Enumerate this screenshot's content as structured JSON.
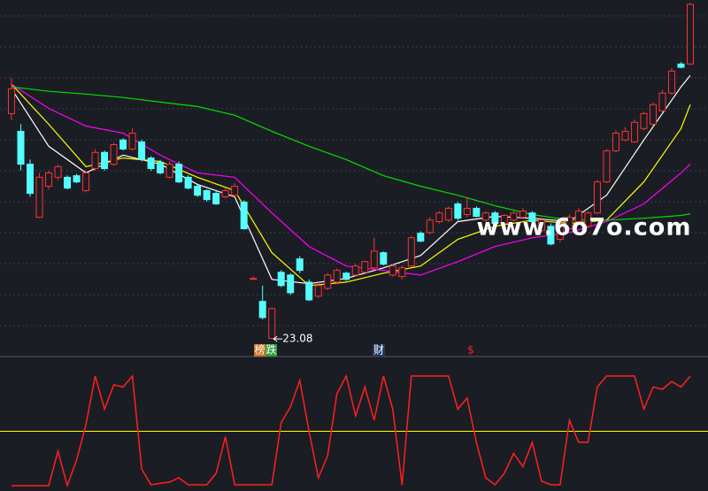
{
  "chart_data": [
    {
      "type": "candlestick",
      "up_color": "#ff3232",
      "down_color": "#54ffff",
      "xlim": [
        0,
        73
      ],
      "ylim": [
        22.6,
        34.0
      ],
      "candles": [
        [
          30.34,
          31.49,
          30.14,
          31.14
        ],
        [
          29.77,
          30.0,
          28.51,
          28.71
        ],
        [
          28.71,
          28.86,
          27.66,
          27.77
        ],
        [
          27.0,
          28.43,
          26.97,
          28.29
        ],
        [
          28.0,
          28.5,
          27.9,
          28.43
        ],
        [
          28.29,
          28.7,
          28.2,
          28.63
        ],
        [
          28.29,
          28.35,
          27.9,
          27.94
        ],
        [
          28.34,
          28.4,
          28.1,
          28.14
        ],
        [
          27.86,
          28.5,
          27.8,
          28.43
        ],
        [
          28.57,
          29.2,
          28.5,
          29.09
        ],
        [
          29.09,
          29.15,
          28.5,
          28.57
        ],
        [
          28.71,
          29.4,
          28.65,
          29.34
        ],
        [
          29.49,
          29.55,
          29.15,
          29.2
        ],
        [
          29.2,
          29.86,
          29.14,
          29.71
        ],
        [
          29.43,
          29.5,
          28.8,
          28.86
        ],
        [
          28.91,
          28.97,
          28.5,
          28.57
        ],
        [
          28.77,
          28.85,
          28.38,
          28.43
        ],
        [
          28.29,
          28.8,
          28.25,
          28.71
        ],
        [
          28.71,
          28.8,
          28.1,
          28.14
        ],
        [
          28.29,
          28.35,
          27.9,
          27.94
        ],
        [
          28.0,
          28.05,
          27.65,
          27.71
        ],
        [
          27.86,
          27.9,
          27.5,
          27.57
        ],
        [
          27.77,
          27.85,
          27.4,
          27.43
        ],
        [
          27.66,
          27.95,
          27.6,
          27.86
        ],
        [
          27.71,
          28.1,
          27.65,
          28.0
        ],
        [
          27.49,
          27.55,
          26.6,
          26.63
        ],
        [
          25.03,
          25.1,
          25.0,
          25.03
        ],
        [
          24.29,
          24.8,
          23.71,
          23.77
        ],
        [
          23.1,
          24.1,
          23.08,
          24.06
        ],
        [
          25.23,
          25.3,
          24.75,
          24.8
        ],
        [
          25.14,
          25.2,
          24.5,
          24.57
        ],
        [
          25.66,
          25.75,
          25.2,
          25.29
        ],
        [
          24.91,
          25.0,
          24.3,
          24.34
        ],
        [
          24.46,
          24.9,
          24.4,
          24.8
        ],
        [
          24.71,
          25.2,
          24.65,
          25.14
        ],
        [
          24.91,
          25.35,
          24.85,
          25.29
        ],
        [
          25.2,
          25.25,
          24.95,
          25.0
        ],
        [
          25.14,
          25.5,
          25.1,
          25.43
        ],
        [
          25.23,
          25.6,
          25.2,
          25.57
        ],
        [
          25.37,
          26.34,
          25.29,
          25.91
        ],
        [
          25.86,
          25.9,
          25.45,
          25.49
        ],
        [
          25.14,
          25.5,
          25.1,
          25.43
        ],
        [
          25.09,
          25.45,
          25.0,
          25.37
        ],
        [
          25.43,
          26.4,
          25.4,
          26.34
        ],
        [
          26.49,
          26.55,
          26.2,
          26.23
        ],
        [
          26.51,
          27.0,
          26.45,
          26.91
        ],
        [
          26.86,
          27.2,
          26.8,
          27.14
        ],
        [
          26.91,
          27.35,
          26.85,
          27.29
        ],
        [
          27.43,
          27.5,
          26.9,
          26.97
        ],
        [
          27.09,
          27.66,
          27.0,
          27.29
        ],
        [
          27.29,
          27.35,
          27.0,
          27.03
        ],
        [
          26.91,
          27.2,
          26.85,
          27.14
        ],
        [
          27.14,
          27.2,
          26.75,
          26.8
        ],
        [
          26.8,
          27.1,
          26.75,
          27.06
        ],
        [
          26.91,
          27.2,
          26.85,
          27.14
        ],
        [
          27.0,
          27.3,
          26.95,
          27.2
        ],
        [
          27.14,
          27.2,
          26.8,
          26.86
        ],
        [
          26.57,
          27.0,
          26.5,
          26.91
        ],
        [
          26.71,
          26.8,
          26.1,
          26.14
        ],
        [
          26.29,
          26.85,
          26.2,
          26.8
        ],
        [
          26.63,
          27.1,
          26.6,
          27.0
        ],
        [
          26.86,
          27.3,
          26.8,
          27.2
        ],
        [
          26.71,
          27.2,
          26.65,
          27.14
        ],
        [
          27.14,
          28.2,
          27.1,
          28.14
        ],
        [
          28.14,
          29.2,
          28.1,
          29.14
        ],
        [
          29.14,
          29.8,
          29.1,
          29.71
        ],
        [
          29.49,
          29.9,
          29.45,
          29.77
        ],
        [
          29.43,
          30.15,
          29.4,
          30.06
        ],
        [
          29.86,
          30.4,
          29.8,
          30.34
        ],
        [
          30.0,
          30.7,
          29.95,
          30.63
        ],
        [
          30.43,
          31.1,
          30.4,
          31.0
        ],
        [
          31.0,
          31.8,
          30.95,
          31.71
        ],
        [
          31.94,
          32.0,
          31.8,
          31.83
        ],
        [
          31.94,
          33.9,
          31.9,
          33.86
        ]
      ],
      "series": [
        {
          "color": "#ffffff",
          "x": [
            0,
            4,
            8,
            12,
            16,
            20,
            24,
            28,
            32,
            36,
            40,
            44,
            48,
            52,
            56,
            60,
            64,
            68,
            72,
            73
          ],
          "values": [
            31.14,
            29.29,
            28.43,
            29.0,
            28.71,
            28.06,
            27.66,
            25.0,
            24.86,
            25.03,
            25.37,
            25.77,
            26.86,
            27.03,
            26.97,
            26.86,
            27.71,
            29.49,
            31.2,
            31.57
          ]
        },
        {
          "color": "#ffff00",
          "x": [
            0,
            4,
            8,
            12,
            16,
            20,
            24,
            28,
            32,
            36,
            40,
            44,
            48,
            52,
            56,
            60,
            64,
            68,
            72,
            73
          ],
          "values": [
            31.29,
            30.0,
            28.63,
            28.91,
            28.8,
            28.29,
            27.86,
            25.86,
            24.8,
            24.91,
            25.2,
            25.43,
            26.29,
            26.71,
            26.91,
            26.8,
            26.91,
            28.14,
            29.86,
            30.63
          ]
        },
        {
          "color": "#ff00ff",
          "x": [
            0,
            4,
            8,
            12,
            16,
            20,
            24,
            28,
            32,
            36,
            40,
            44,
            48,
            52,
            56,
            60,
            64,
            68,
            72,
            73
          ],
          "values": [
            31.29,
            30.51,
            29.94,
            29.71,
            29.0,
            28.43,
            28.29,
            27.14,
            26.06,
            25.43,
            25.29,
            25.14,
            25.57,
            26.06,
            26.34,
            26.51,
            26.86,
            27.43,
            28.43,
            28.71
          ]
        },
        {
          "color": "#00e000",
          "x": [
            0,
            4,
            8,
            12,
            16,
            20,
            24,
            28,
            32,
            36,
            40,
            44,
            48,
            52,
            56,
            60,
            64,
            68,
            72,
            73
          ],
          "values": [
            31.2,
            31.06,
            30.97,
            30.86,
            30.71,
            30.57,
            30.29,
            29.77,
            29.29,
            28.86,
            28.34,
            28.0,
            27.71,
            27.37,
            27.09,
            26.91,
            26.91,
            26.97,
            27.06,
            27.11
          ]
        }
      ]
    },
    {
      "type": "line",
      "color": "#ff2020",
      "xlim": [
        0,
        73
      ],
      "ylim": [
        0,
        100
      ],
      "threshold": 50,
      "threshold_color": "#ffff00",
      "values": [
        0.8,
        0.8,
        0.8,
        0.8,
        0.8,
        32,
        0.8,
        24,
        56,
        100,
        70,
        92,
        90,
        100,
        16,
        1.6,
        3,
        4,
        8,
        1.6,
        1.6,
        1.6,
        12,
        45,
        1.6,
        1.6,
        1.6,
        1.6,
        1.6,
        58,
        72,
        96,
        50,
        8,
        28,
        84,
        100,
        64,
        90,
        60,
        100,
        70,
        1.6,
        100,
        100,
        100,
        100,
        100,
        70,
        80,
        40,
        8,
        1.6,
        12,
        30,
        18,
        40,
        5,
        1.6,
        1.6,
        60,
        40,
        40,
        90,
        100,
        100,
        100,
        100,
        70,
        90,
        88,
        95,
        90,
        100
      ]
    }
  ],
  "markers": [
    "榜",
    "跌",
    "财",
    "$"
  ],
  "watermark": "www.6o7o.com"
}
